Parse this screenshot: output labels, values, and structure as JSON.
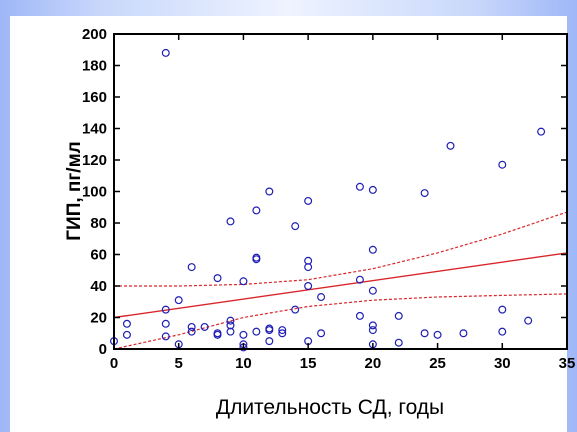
{
  "chart_data": {
    "type": "scatter",
    "xlabel": "Длительность СД, годы",
    "ylabel": "ГИП, пг/мл",
    "xlim": [
      0,
      35
    ],
    "ylim": [
      0,
      200
    ],
    "x_ticks": [
      "0",
      "5",
      "10",
      "15",
      "20",
      "25",
      "30",
      "35"
    ],
    "y_ticks": [
      "0",
      "20",
      "40",
      "60",
      "80",
      "100",
      "120",
      "140",
      "160",
      "180",
      "200"
    ],
    "grid": false,
    "point_color": "#1f1fb4",
    "fit_color": "#d9262b",
    "points": [
      [
        4,
        188
      ],
      [
        26,
        129
      ],
      [
        33,
        138
      ],
      [
        30,
        117
      ],
      [
        12,
        100
      ],
      [
        19,
        103
      ],
      [
        20,
        101
      ],
      [
        24,
        99
      ],
      [
        15,
        94
      ],
      [
        11,
        88
      ],
      [
        9,
        81
      ],
      [
        14,
        78
      ],
      [
        20,
        63
      ],
      [
        11,
        58
      ],
      [
        11,
        57
      ],
      [
        15,
        56
      ],
      [
        6,
        52
      ],
      [
        15,
        52
      ],
      [
        8,
        45
      ],
      [
        10,
        43
      ],
      [
        19,
        44
      ],
      [
        15,
        40
      ],
      [
        20,
        37
      ],
      [
        16,
        33
      ],
      [
        5,
        31
      ],
      [
        4,
        25
      ],
      [
        14,
        25
      ],
      [
        30,
        25
      ],
      [
        19,
        21
      ],
      [
        22,
        21
      ],
      [
        9,
        18
      ],
      [
        32,
        18
      ],
      [
        1,
        16
      ],
      [
        4,
        16
      ],
      [
        9,
        15
      ],
      [
        20,
        15
      ],
      [
        6,
        14
      ],
      [
        7,
        14
      ],
      [
        12,
        13
      ],
      [
        12,
        12
      ],
      [
        6,
        11
      ],
      [
        9,
        11
      ],
      [
        13,
        12
      ],
      [
        20,
        12
      ],
      [
        11,
        11
      ],
      [
        1,
        9
      ],
      [
        4,
        8
      ],
      [
        8,
        9
      ],
      [
        8,
        10
      ],
      [
        24,
        10
      ],
      [
        27,
        10
      ],
      [
        30,
        11
      ],
      [
        10,
        9
      ],
      [
        16,
        10
      ],
      [
        25,
        9
      ],
      [
        13,
        10
      ],
      [
        0,
        5
      ],
      [
        12,
        5
      ],
      [
        15,
        5
      ],
      [
        22,
        4
      ],
      [
        5,
        3
      ],
      [
        10,
        3
      ],
      [
        20,
        3
      ],
      [
        10,
        1
      ]
    ],
    "fit_line": {
      "x0": 0,
      "y0": 20,
      "x1": 35,
      "y1": 61
    },
    "ci_upper": [
      [
        0,
        40
      ],
      [
        5,
        40
      ],
      [
        10,
        41
      ],
      [
        15,
        44
      ],
      [
        20,
        51
      ],
      [
        25,
        61
      ],
      [
        30,
        73
      ],
      [
        35,
        87
      ]
    ],
    "ci_lower": [
      [
        0,
        0
      ],
      [
        5,
        9
      ],
      [
        10,
        20
      ],
      [
        15,
        27
      ],
      [
        20,
        31
      ],
      [
        25,
        33
      ],
      [
        30,
        34
      ],
      [
        35,
        35
      ]
    ]
  }
}
